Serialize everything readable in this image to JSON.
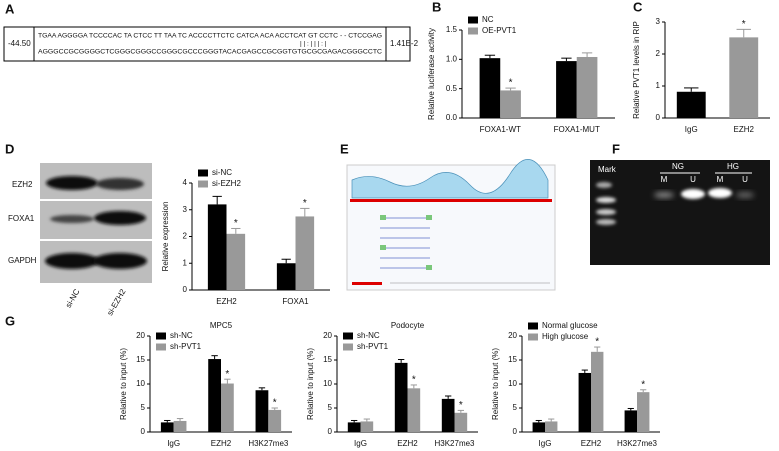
{
  "panel_labels": [
    "A",
    "B",
    "C",
    "D",
    "E",
    "F",
    "G"
  ],
  "panel_a": {
    "score": "-44.50",
    "seq_top": "TGAA AGGGGA TCCCCAC TA CTCC TT TAA TC ACCCCTTCTC CATCA ACA ACCTCAT GT CCTC - - CTCCGAG",
    "pairing": "| |  :  |  |  |  :  |",
    "seq_bottom": "AGGGCCGCGGGGCTCGGGCGGGCCGGGCGCCCGGGTACACGAGCCGCGGTGTGCGCGAGACGGGCCTC",
    "pvalue": "1.41E-2"
  },
  "panel_d_blot": {
    "rows": [
      "EZH2",
      "FOXA1",
      "GAPDH"
    ],
    "lanes": [
      "si-NC",
      "si-EZH2"
    ]
  },
  "panel_f_gel": {
    "marker": "Mark",
    "groups": [
      "NG",
      "HG"
    ],
    "lanes": [
      "M",
      "U",
      "M",
      "U"
    ]
  },
  "chart_data": [
    {
      "type": "bar",
      "ylabel": "Relative luciferase activity",
      "categories": [
        "FOXA1-WT",
        "FOXA1-MUT"
      ],
      "series": [
        {
          "name": "NC",
          "color": "#000000",
          "values": [
            1.02,
            0.97
          ],
          "errors": [
            0.05,
            0.05
          ],
          "significance": [
            null,
            null
          ]
        },
        {
          "name": "OE-PVT1",
          "color": "#999999",
          "values": [
            0.47,
            1.04
          ],
          "errors": [
            0.04,
            0.07
          ],
          "significance": [
            "*",
            null
          ]
        }
      ],
      "ylim": [
        0,
        1.5
      ],
      "yticks": [
        {
          "value": 0,
          "label": "0.0"
        },
        0.5,
        {
          "value": 1,
          "label": "1.0"
        },
        1.5
      ],
      "legend": "upper left"
    },
    {
      "type": "bar",
      "ylabel": "Relative PVT1 levels in RIP",
      "categories": [
        "IgG",
        "EZH2"
      ],
      "values": [
        0.82,
        2.52
      ],
      "errors": [
        0.12,
        0.25
      ],
      "significance": [
        null,
        "*"
      ],
      "colors": [
        "#000000",
        "#999999"
      ],
      "ylim": [
        0,
        3
      ],
      "yticks": [
        0,
        1,
        2,
        3
      ]
    },
    {
      "type": "bar",
      "ylabel": "Relative expression",
      "categories": [
        "EZH2",
        "FOXA1"
      ],
      "series": [
        {
          "name": "si-NC",
          "color": "#000000",
          "values": [
            3.2,
            1.0
          ],
          "errors": [
            0.3,
            0.15
          ],
          "significance": [
            null,
            null
          ]
        },
        {
          "name": "si-EZH2",
          "color": "#999999",
          "values": [
            2.1,
            2.75
          ],
          "errors": [
            0.2,
            0.3
          ],
          "significance": [
            "*",
            "*"
          ]
        }
      ],
      "ylim": [
        0,
        4
      ],
      "yticks": [
        0,
        1,
        2,
        3,
        4
      ],
      "legend": "upper left"
    },
    {
      "type": "bar",
      "title": "MPC5",
      "ylabel": "Relative to input (%)",
      "categories": [
        "IgG",
        "EZH2",
        "H3K27me3"
      ],
      "series": [
        {
          "name": "sh-NC",
          "color": "#000000",
          "values": [
            2.0,
            15.2,
            8.7
          ],
          "errors": [
            0.4,
            0.7,
            0.5
          ],
          "significance": [
            null,
            null,
            null
          ]
        },
        {
          "name": "sh-PVT1",
          "color": "#999999",
          "values": [
            2.3,
            10.1,
            4.6
          ],
          "errors": [
            0.5,
            0.9,
            0.4
          ],
          "significance": [
            null,
            "*",
            "*"
          ]
        }
      ],
      "ylim": [
        0,
        20
      ],
      "yticks": [
        0,
        5,
        10,
        15,
        20
      ],
      "legend": "upper left"
    },
    {
      "type": "bar",
      "title": "Podocyte",
      "ylabel": "Relative to input (%)",
      "categories": [
        "IgG",
        "EZH2",
        "H3K27me3"
      ],
      "series": [
        {
          "name": "sh-NC",
          "color": "#000000",
          "values": [
            2.0,
            14.4,
            6.9
          ],
          "errors": [
            0.4,
            0.7,
            0.6
          ],
          "significance": [
            null,
            null,
            null
          ]
        },
        {
          "name": "sh-PVT1",
          "color": "#999999",
          "values": [
            2.2,
            9.1,
            4.0
          ],
          "errors": [
            0.5,
            0.7,
            0.5
          ],
          "significance": [
            null,
            "*",
            "*"
          ]
        }
      ],
      "ylim": [
        0,
        20
      ],
      "yticks": [
        0,
        5,
        10,
        15,
        20
      ],
      "legend": "upper left"
    },
    {
      "type": "bar",
      "ylabel": "Relative to input (%)",
      "categories": [
        "IgG",
        "EZH2",
        "H3K27me3"
      ],
      "series": [
        {
          "name": "Normal glucose",
          "color": "#000000",
          "values": [
            2.0,
            12.3,
            4.5
          ],
          "errors": [
            0.4,
            0.6,
            0.4
          ],
          "significance": [
            null,
            null,
            null
          ]
        },
        {
          "name": "High glucose",
          "color": "#999999",
          "values": [
            2.2,
            16.7,
            8.3
          ],
          "errors": [
            0.5,
            1.0,
            0.5
          ],
          "significance": [
            null,
            "*",
            "*"
          ]
        }
      ],
      "ylim": [
        0,
        20
      ],
      "yticks": [
        0,
        5,
        10,
        15,
        20
      ],
      "legend": "upper left"
    }
  ]
}
